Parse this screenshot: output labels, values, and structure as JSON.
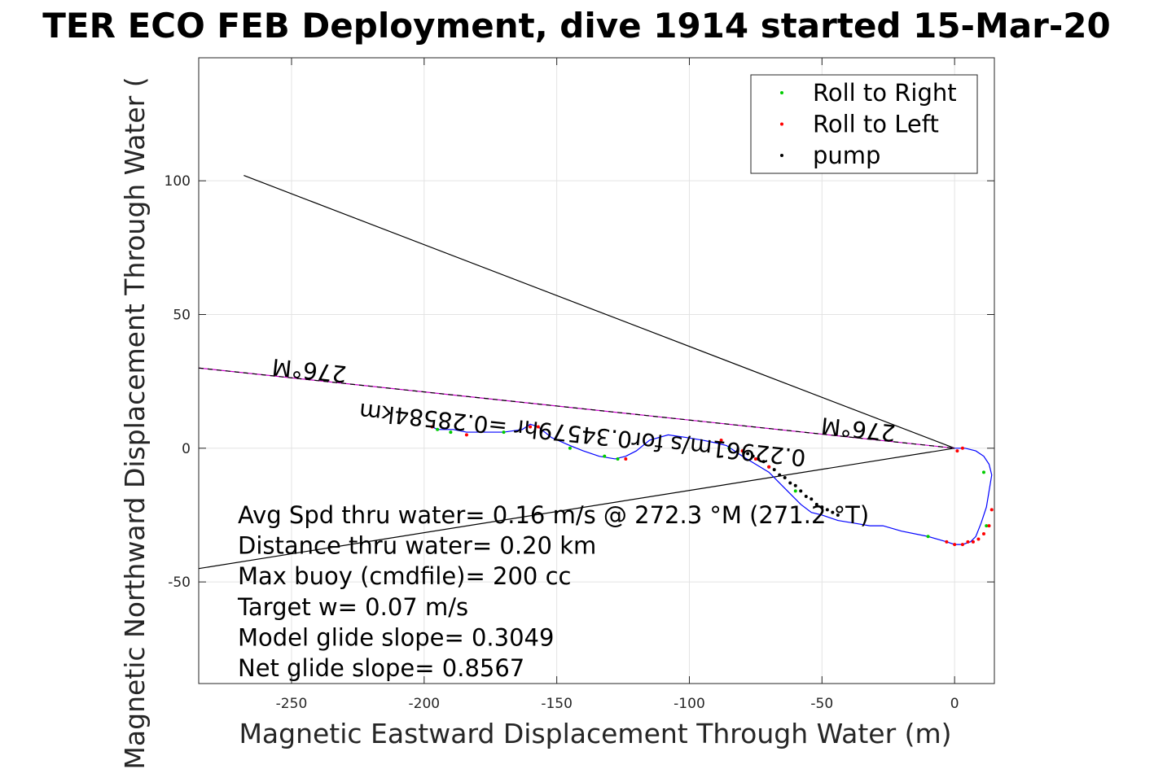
{
  "chart_data": {
    "type": "line",
    "title": "TER ECO FEB Deployment, dive 1914 started 15-Mar-20",
    "xlabel": "Magnetic Eastward Displacement Through Water (m)",
    "ylabel": "Magnetic Northward Displacement Through Water (",
    "xlim": [
      -285,
      15
    ],
    "ylim": [
      -88,
      146
    ],
    "xticks": [
      -250,
      -200,
      -150,
      -100,
      -50,
      0
    ],
    "yticks": [
      -50,
      0,
      50,
      100
    ],
    "grid": true,
    "legend_position": "top-right",
    "legend": [
      {
        "label": "Roll to Right",
        "color": "#00cc00"
      },
      {
        "label": "Roll to Left",
        "color": "#ff0000"
      },
      {
        "label": "pump",
        "color": "#000000"
      }
    ],
    "track": {
      "color": "#0000ff",
      "x": [
        -197,
        -195,
        -189,
        -184,
        -176,
        -170,
        -163,
        -160,
        -157,
        -152,
        -145,
        -140,
        -134,
        -128,
        -124,
        -120,
        -115,
        -108,
        -101,
        -95,
        -90,
        -86,
        -80,
        -75,
        -70,
        -66,
        -62,
        -58,
        -54,
        -50,
        -44,
        -38,
        -32,
        -27,
        -20,
        -10,
        -3,
        0,
        3,
        6,
        8,
        10,
        12,
        13,
        14,
        13,
        11,
        8,
        4,
        0
      ],
      "y": [
        8,
        7,
        7,
        6,
        6,
        6,
        7,
        9,
        8,
        4,
        1,
        -1,
        -3,
        -4,
        -3,
        -1,
        3,
        5,
        4,
        3,
        2,
        1,
        -3,
        -6,
        -9,
        -13,
        -17,
        -21,
        -24,
        -25,
        -27,
        -28,
        -29,
        -29,
        -31,
        -33,
        -35,
        -36,
        -36,
        -35,
        -33,
        -28,
        -22,
        -16,
        -10,
        -6,
        -3,
        -1,
        0,
        0
      ]
    },
    "roll_right_points": {
      "x": [
        -195,
        -190,
        -170,
        -145,
        -132,
        -127,
        -85,
        -60,
        -10,
        11,
        12
      ],
      "y": [
        7,
        6,
        6,
        0,
        -3,
        -4,
        0,
        -16,
        -33,
        -9,
        -29
      ]
    },
    "roll_left_points": {
      "x": [
        -197,
        -184,
        -160,
        -157,
        -124,
        -88,
        -80,
        -75,
        -70,
        -3,
        0,
        3,
        5,
        7,
        9,
        11,
        13,
        14,
        1,
        3
      ],
      "y": [
        8,
        5,
        8,
        8,
        -4,
        3,
        -1,
        -4,
        -7,
        -35,
        -36,
        -36,
        -35,
        -35,
        -34,
        -32,
        -29,
        -23,
        -1,
        0
      ]
    },
    "pump_points": {
      "x": [
        -78,
        -76,
        -74,
        -72,
        -70,
        -68,
        -66,
        -64,
        -62,
        -60,
        -58,
        -56,
        -54,
        -52,
        -50,
        -48,
        -46,
        -44
      ],
      "y": [
        -2,
        -3,
        -4,
        -5,
        -7,
        -8,
        -10,
        -11,
        -13,
        -14,
        -16,
        -18,
        -19,
        -21,
        -22,
        -23,
        -24,
        -25
      ]
    },
    "reference_lines": [
      {
        "x": [
          -268,
          0
        ],
        "y": [
          102,
          0
        ],
        "color": "#000000"
      },
      {
        "x": [
          -285,
          0
        ],
        "y": [
          30,
          0
        ],
        "color": "#cc00cc"
      },
      {
        "x": [
          -285,
          0
        ],
        "y": [
          30,
          0
        ],
        "color": "#000000",
        "dash": true
      },
      {
        "x": [
          -285,
          0
        ],
        "y": [
          -45,
          0
        ],
        "color": "#000000"
      }
    ],
    "annotations": [
      {
        "text": "276°M",
        "x": -243,
        "y": 32,
        "rotate": 186
      },
      {
        "text": "0.22961m/s for0.34579hr =0.28584km",
        "x": -140,
        "y": 8,
        "rotate": 186
      },
      {
        "text": "276°M",
        "x": -36,
        "y": 10,
        "rotate": 186
      }
    ],
    "stats": [
      "Avg Spd thru water=  0.16 m/s @ 272.3 °M (271.2 °T)",
      "Distance thru water=  0.20 km",
      "Max buoy (cmdfile)= 200 cc",
      "Target w= 0.07 m/s",
      "Model glide slope= 0.3049",
      "Net glide slope= 0.8567"
    ]
  }
}
